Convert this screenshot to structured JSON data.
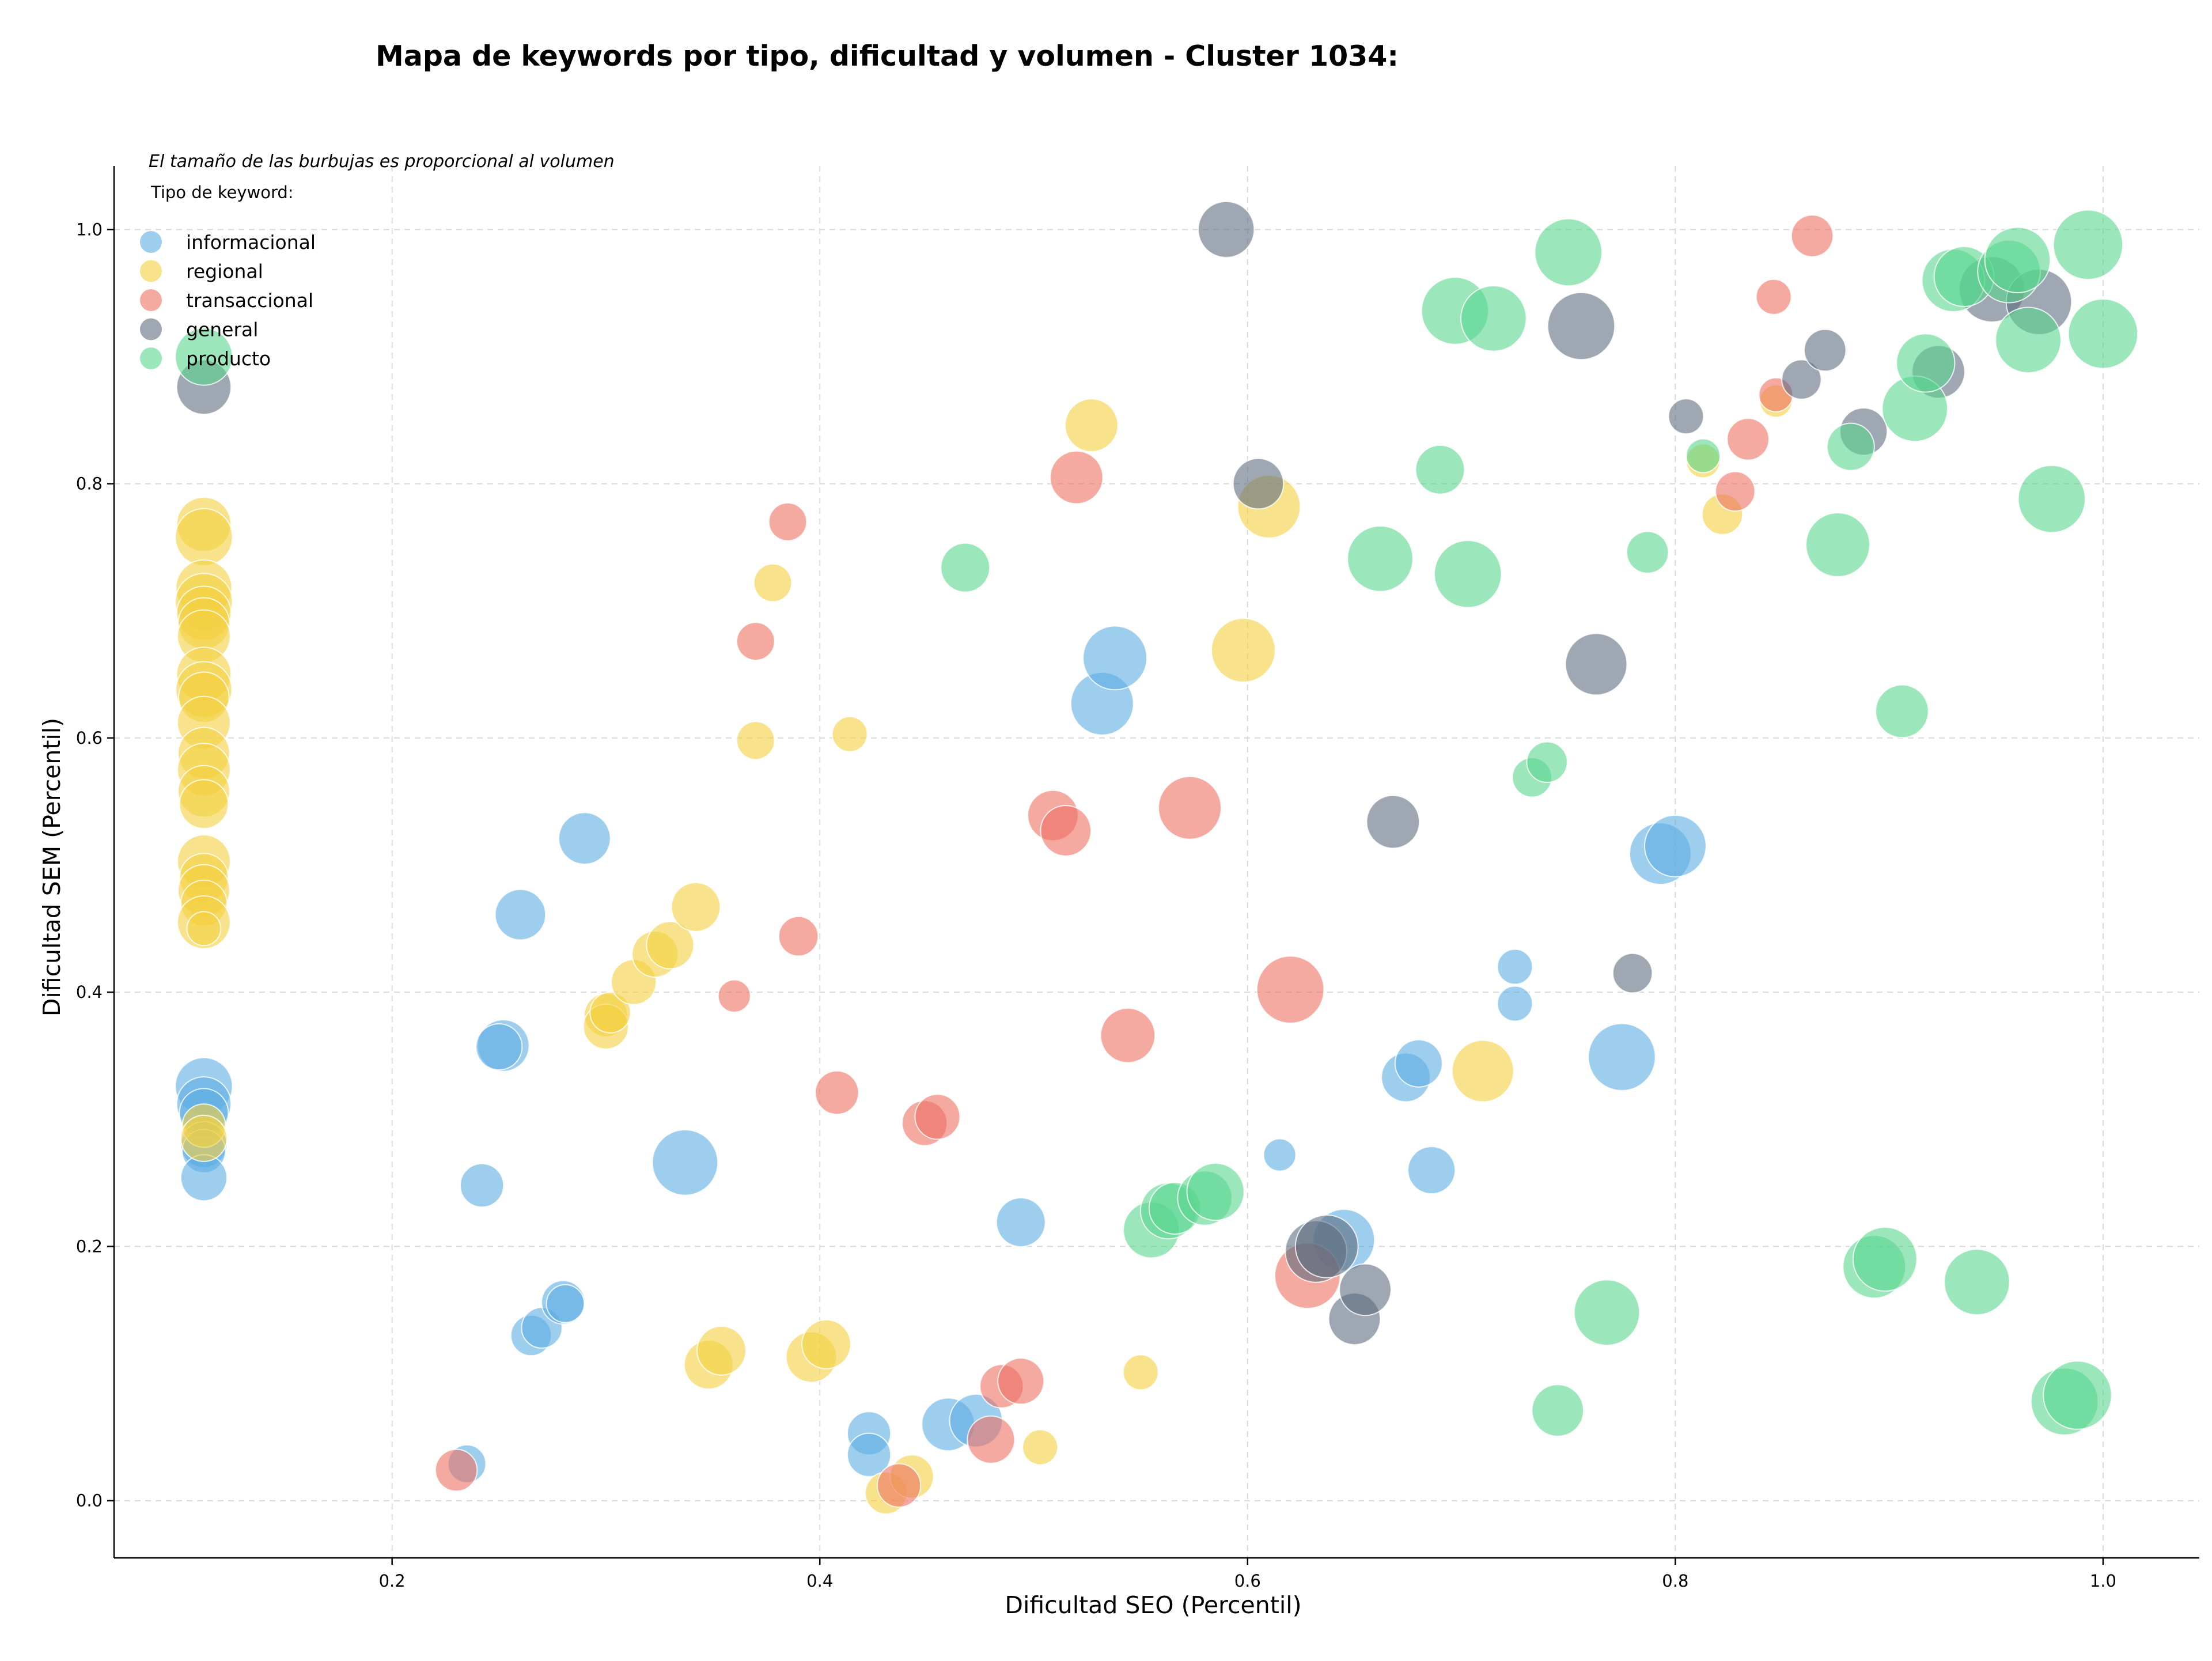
{
  "chart_data": {
    "type": "scatter",
    "title": "Mapa de keywords por tipo, dificultad y volumen - Cluster 1034:",
    "xlabel": "Dificultad SEO (Percentil)",
    "ylabel": "Dificultad SEM (Percentil)",
    "xlim": [
      0.07,
      1.045
    ],
    "ylim": [
      -0.045,
      1.05
    ],
    "xticks": [
      0.2,
      0.4,
      0.6,
      0.8,
      1.0
    ],
    "xtick_labels": [
      "0.2",
      "0.4",
      "0.6",
      "0.8",
      "1.0"
    ],
    "yticks": [
      0.0,
      0.2,
      0.4,
      0.6,
      0.8,
      1.0
    ],
    "ytick_labels": [
      "0.0",
      "0.2",
      "0.4",
      "0.6",
      "0.8",
      "1.0"
    ],
    "grid": true,
    "annotation": "El tamaño de las burbujas es proporcional al volumen",
    "legend_title": "Tipo de keyword:",
    "legend_position": "top-left",
    "size_note": "s = relative bubble size (volume)",
    "series": [
      {
        "name": "informacional",
        "color": "#5DADE2",
        "points": [
          {
            "x": 0.112,
            "y": 0.326,
            "s": 0.7
          },
          {
            "x": 0.112,
            "y": 0.312,
            "s": 0.65
          },
          {
            "x": 0.112,
            "y": 0.305,
            "s": 0.55
          },
          {
            "x": 0.112,
            "y": 0.28,
            "s": 0.5
          },
          {
            "x": 0.112,
            "y": 0.275,
            "s": 0.45
          },
          {
            "x": 0.112,
            "y": 0.254,
            "s": 0.5
          },
          {
            "x": 0.235,
            "y": 0.029,
            "s": 0.35
          },
          {
            "x": 0.242,
            "y": 0.248,
            "s": 0.45
          },
          {
            "x": 0.252,
            "y": 0.358,
            "s": 0.6
          },
          {
            "x": 0.25,
            "y": 0.357,
            "s": 0.5
          },
          {
            "x": 0.26,
            "y": 0.461,
            "s": 0.58
          },
          {
            "x": 0.265,
            "y": 0.13,
            "s": 0.4
          },
          {
            "x": 0.27,
            "y": 0.136,
            "s": 0.4
          },
          {
            "x": 0.28,
            "y": 0.156,
            "s": 0.45
          },
          {
            "x": 0.281,
            "y": 0.155,
            "s": 0.35
          },
          {
            "x": 0.29,
            "y": 0.521,
            "s": 0.6
          },
          {
            "x": 0.337,
            "y": 0.266,
            "s": 0.85
          },
          {
            "x": 0.423,
            "y": 0.053,
            "s": 0.45
          },
          {
            "x": 0.423,
            "y": 0.036,
            "s": 0.45
          },
          {
            "x": 0.46,
            "y": 0.06,
            "s": 0.62
          },
          {
            "x": 0.473,
            "y": 0.063,
            "s": 0.62
          },
          {
            "x": 0.494,
            "y": 0.219,
            "s": 0.55
          },
          {
            "x": 0.532,
            "y": 0.627,
            "s": 0.8
          },
          {
            "x": 0.538,
            "y": 0.663,
            "s": 0.82
          },
          {
            "x": 0.615,
            "y": 0.272,
            "s": 0.25
          },
          {
            "x": 0.645,
            "y": 0.205,
            "s": 0.78
          },
          {
            "x": 0.674,
            "y": 0.333,
            "s": 0.55
          },
          {
            "x": 0.68,
            "y": 0.344,
            "s": 0.52
          },
          {
            "x": 0.686,
            "y": 0.26,
            "s": 0.52
          },
          {
            "x": 0.725,
            "y": 0.42,
            "s": 0.3
          },
          {
            "x": 0.725,
            "y": 0.391,
            "s": 0.3
          },
          {
            "x": 0.775,
            "y": 0.349,
            "s": 0.88
          },
          {
            "x": 0.793,
            "y": 0.509,
            "s": 0.78
          },
          {
            "x": 0.8,
            "y": 0.515,
            "s": 0.78
          }
        ]
      },
      {
        "name": "regional",
        "color": "#F4D03F",
        "points": [
          {
            "x": 0.112,
            "y": 0.768,
            "s": 0.65
          },
          {
            "x": 0.112,
            "y": 0.758,
            "s": 0.7
          },
          {
            "x": 0.112,
            "y": 0.718,
            "s": 0.68
          },
          {
            "x": 0.112,
            "y": 0.707,
            "s": 0.7
          },
          {
            "x": 0.112,
            "y": 0.698,
            "s": 0.65
          },
          {
            "x": 0.112,
            "y": 0.69,
            "s": 0.6
          },
          {
            "x": 0.112,
            "y": 0.68,
            "s": 0.62
          },
          {
            "x": 0.112,
            "y": 0.65,
            "s": 0.65
          },
          {
            "x": 0.112,
            "y": 0.638,
            "s": 0.68
          },
          {
            "x": 0.112,
            "y": 0.632,
            "s": 0.58
          },
          {
            "x": 0.112,
            "y": 0.612,
            "s": 0.62
          },
          {
            "x": 0.112,
            "y": 0.588,
            "s": 0.6
          },
          {
            "x": 0.112,
            "y": 0.575,
            "s": 0.62
          },
          {
            "x": 0.112,
            "y": 0.558,
            "s": 0.6
          },
          {
            "x": 0.112,
            "y": 0.548,
            "s": 0.55
          },
          {
            "x": 0.112,
            "y": 0.503,
            "s": 0.62
          },
          {
            "x": 0.112,
            "y": 0.49,
            "s": 0.55
          },
          {
            "x": 0.112,
            "y": 0.48,
            "s": 0.6
          },
          {
            "x": 0.112,
            "y": 0.47,
            "s": 0.5
          },
          {
            "x": 0.112,
            "y": 0.455,
            "s": 0.62
          },
          {
            "x": 0.112,
            "y": 0.45,
            "s": 0.28
          },
          {
            "x": 0.112,
            "y": 0.295,
            "s": 0.45
          },
          {
            "x": 0.112,
            "y": 0.285,
            "s": 0.5
          },
          {
            "x": 0.3,
            "y": 0.382,
            "s": 0.45
          },
          {
            "x": 0.3,
            "y": 0.373,
            "s": 0.48
          },
          {
            "x": 0.302,
            "y": 0.384,
            "s": 0.4
          },
          {
            "x": 0.313,
            "y": 0.408,
            "s": 0.48
          },
          {
            "x": 0.323,
            "y": 0.43,
            "s": 0.5
          },
          {
            "x": 0.33,
            "y": 0.437,
            "s": 0.52
          },
          {
            "x": 0.342,
            "y": 0.467,
            "s": 0.55
          },
          {
            "x": 0.348,
            "y": 0.107,
            "s": 0.55
          },
          {
            "x": 0.354,
            "y": 0.118,
            "s": 0.55
          },
          {
            "x": 0.37,
            "y": 0.598,
            "s": 0.35
          },
          {
            "x": 0.378,
            "y": 0.722,
            "s": 0.35
          },
          {
            "x": 0.396,
            "y": 0.113,
            "s": 0.58
          },
          {
            "x": 0.403,
            "y": 0.123,
            "s": 0.55
          },
          {
            "x": 0.414,
            "y": 0.603,
            "s": 0.3
          },
          {
            "x": 0.431,
            "y": 0.006,
            "s": 0.42
          },
          {
            "x": 0.443,
            "y": 0.019,
            "s": 0.45
          },
          {
            "x": 0.503,
            "y": 0.042,
            "s": 0.3
          },
          {
            "x": 0.527,
            "y": 0.846,
            "s": 0.62
          },
          {
            "x": 0.55,
            "y": 0.101,
            "s": 0.3
          },
          {
            "x": 0.598,
            "y": 0.669,
            "s": 0.82
          },
          {
            "x": 0.61,
            "y": 0.782,
            "s": 0.8
          },
          {
            "x": 0.71,
            "y": 0.338,
            "s": 0.78
          },
          {
            "x": 0.813,
            "y": 0.818,
            "s": 0.28
          },
          {
            "x": 0.822,
            "y": 0.776,
            "s": 0.4
          },
          {
            "x": 0.847,
            "y": 0.865,
            "s": 0.25
          }
        ]
      },
      {
        "name": "transaccional",
        "color": "#EC7063",
        "points": [
          {
            "x": 0.23,
            "y": 0.024,
            "s": 0.42
          },
          {
            "x": 0.36,
            "y": 0.397,
            "s": 0.25
          },
          {
            "x": 0.37,
            "y": 0.676,
            "s": 0.35
          },
          {
            "x": 0.385,
            "y": 0.77,
            "s": 0.35
          },
          {
            "x": 0.39,
            "y": 0.444,
            "s": 0.38
          },
          {
            "x": 0.408,
            "y": 0.321,
            "s": 0.45
          },
          {
            "x": 0.437,
            "y": 0.012,
            "s": 0.45
          },
          {
            "x": 0.449,
            "y": 0.297,
            "s": 0.48
          },
          {
            "x": 0.455,
            "y": 0.302,
            "s": 0.48
          },
          {
            "x": 0.48,
            "y": 0.048,
            "s": 0.52
          },
          {
            "x": 0.485,
            "y": 0.09,
            "s": 0.45
          },
          {
            "x": 0.494,
            "y": 0.094,
            "s": 0.5
          },
          {
            "x": 0.509,
            "y": 0.539,
            "s": 0.58
          },
          {
            "x": 0.515,
            "y": 0.527,
            "s": 0.58
          },
          {
            "x": 0.52,
            "y": 0.805,
            "s": 0.62
          },
          {
            "x": 0.544,
            "y": 0.366,
            "s": 0.65
          },
          {
            "x": 0.573,
            "y": 0.545,
            "s": 0.8
          },
          {
            "x": 0.62,
            "y": 0.402,
            "s": 0.88
          },
          {
            "x": 0.628,
            "y": 0.177,
            "s": 0.85
          },
          {
            "x": 0.828,
            "y": 0.794,
            "s": 0.38
          },
          {
            "x": 0.834,
            "y": 0.835,
            "s": 0.42
          },
          {
            "x": 0.846,
            "y": 0.947,
            "s": 0.3
          },
          {
            "x": 0.847,
            "y": 0.87,
            "s": 0.28
          },
          {
            "x": 0.864,
            "y": 0.995,
            "s": 0.42
          }
        ]
      },
      {
        "name": "general",
        "color": "#5D6D7E",
        "points": [
          {
            "x": 0.112,
            "y": 0.876,
            "s": 0.65
          },
          {
            "x": 0.59,
            "y": 1.0,
            "s": 0.68
          },
          {
            "x": 0.605,
            "y": 0.8,
            "s": 0.58
          },
          {
            "x": 0.632,
            "y": 0.196,
            "s": 0.78
          },
          {
            "x": 0.637,
            "y": 0.2,
            "s": 0.8
          },
          {
            "x": 0.65,
            "y": 0.143,
            "s": 0.6
          },
          {
            "x": 0.655,
            "y": 0.166,
            "s": 0.6
          },
          {
            "x": 0.668,
            "y": 0.534,
            "s": 0.62
          },
          {
            "x": 0.756,
            "y": 0.924,
            "s": 0.88
          },
          {
            "x": 0.763,
            "y": 0.658,
            "s": 0.78
          },
          {
            "x": 0.78,
            "y": 0.415,
            "s": 0.38
          },
          {
            "x": 0.805,
            "y": 0.853,
            "s": 0.3
          },
          {
            "x": 0.859,
            "y": 0.882,
            "s": 0.38
          },
          {
            "x": 0.87,
            "y": 0.905,
            "s": 0.42
          },
          {
            "x": 0.888,
            "y": 0.841,
            "s": 0.52
          },
          {
            "x": 0.923,
            "y": 0.888,
            "s": 0.62
          },
          {
            "x": 0.948,
            "y": 0.953,
            "s": 0.85
          },
          {
            "x": 0.97,
            "y": 0.943,
            "s": 0.85
          }
        ]
      },
      {
        "name": "producto",
        "color": "#58D68D",
        "points": [
          {
            "x": 0.112,
            "y": 0.9,
            "s": 0.7
          },
          {
            "x": 0.468,
            "y": 0.734,
            "s": 0.55
          },
          {
            "x": 0.555,
            "y": 0.213,
            "s": 0.68
          },
          {
            "x": 0.563,
            "y": 0.228,
            "s": 0.68
          },
          {
            "x": 0.566,
            "y": 0.23,
            "s": 0.6
          },
          {
            "x": 0.58,
            "y": 0.238,
            "s": 0.65
          },
          {
            "x": 0.585,
            "y": 0.243,
            "s": 0.7
          },
          {
            "x": 0.662,
            "y": 0.741,
            "s": 0.85
          },
          {
            "x": 0.69,
            "y": 0.811,
            "s": 0.55
          },
          {
            "x": 0.697,
            "y": 0.936,
            "s": 0.88
          },
          {
            "x": 0.703,
            "y": 0.729,
            "s": 0.88
          },
          {
            "x": 0.715,
            "y": 0.93,
            "s": 0.85
          },
          {
            "x": 0.733,
            "y": 0.569,
            "s": 0.38
          },
          {
            "x": 0.74,
            "y": 0.581,
            "s": 0.4
          },
          {
            "x": 0.745,
            "y": 0.071,
            "s": 0.6
          },
          {
            "x": 0.75,
            "y": 0.982,
            "s": 0.88
          },
          {
            "x": 0.768,
            "y": 0.148,
            "s": 0.85
          },
          {
            "x": 0.787,
            "y": 0.746,
            "s": 0.42
          },
          {
            "x": 0.813,
            "y": 0.822,
            "s": 0.28
          },
          {
            "x": 0.876,
            "y": 0.752,
            "s": 0.82
          },
          {
            "x": 0.882,
            "y": 0.829,
            "s": 0.52
          },
          {
            "x": 0.893,
            "y": 0.184,
            "s": 0.8
          },
          {
            "x": 0.898,
            "y": 0.19,
            "s": 0.82
          },
          {
            "x": 0.906,
            "y": 0.621,
            "s": 0.62
          },
          {
            "x": 0.912,
            "y": 0.859,
            "s": 0.85
          },
          {
            "x": 0.917,
            "y": 0.895,
            "s": 0.72
          },
          {
            "x": 0.93,
            "y": 0.96,
            "s": 0.8
          },
          {
            "x": 0.935,
            "y": 0.963,
            "s": 0.75
          },
          {
            "x": 0.941,
            "y": 0.172,
            "s": 0.85
          },
          {
            "x": 0.956,
            "y": 0.967,
            "s": 0.8
          },
          {
            "x": 0.96,
            "y": 0.976,
            "s": 0.85
          },
          {
            "x": 0.965,
            "y": 0.913,
            "s": 0.85
          },
          {
            "x": 0.976,
            "y": 0.788,
            "s": 0.88
          },
          {
            "x": 0.982,
            "y": 0.078,
            "s": 0.88
          },
          {
            "x": 0.988,
            "y": 0.083,
            "s": 0.9
          },
          {
            "x": 0.993,
            "y": 0.988,
            "s": 0.92
          },
          {
            "x": 1.0,
            "y": 0.918,
            "s": 0.92
          }
        ]
      }
    ]
  }
}
